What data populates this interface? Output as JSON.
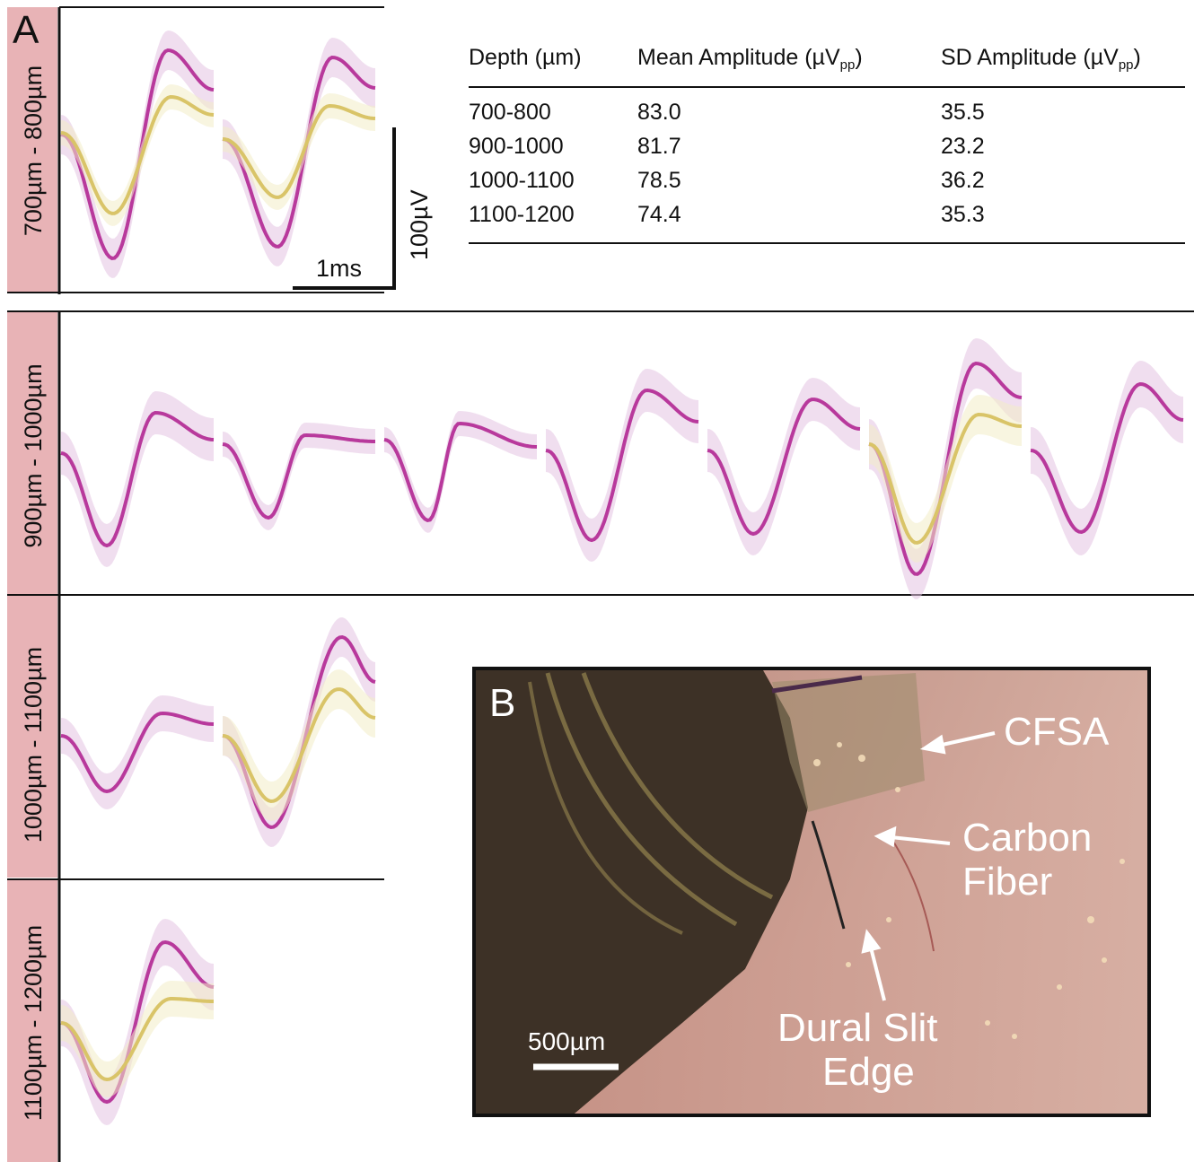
{
  "panel_a_label": "A",
  "panel_b_label": "B",
  "rows": [
    {
      "label": "700µm - 800µm"
    },
    {
      "label": "900µm - 1000µm"
    },
    {
      "label": "1000µm - 1100µm"
    },
    {
      "label": "1100µm - 1200µm"
    }
  ],
  "scale_bar": {
    "time": "1ms",
    "voltage": "100µV"
  },
  "table": {
    "headers": [
      {
        "main": "Depth (µm)",
        "sub": "",
        "tail": ""
      },
      {
        "main": "Mean Amplitude (µV",
        "sub": "pp",
        "tail": ")"
      },
      {
        "main": "SD Amplitude (µV",
        "sub": "pp",
        "tail": ")"
      }
    ],
    "rows": [
      [
        "700-800",
        "83.0",
        "35.5"
      ],
      [
        "900-1000",
        "81.7",
        "23.2"
      ],
      [
        "1000-1100",
        "78.5",
        "36.2"
      ],
      [
        "1100-1200",
        "74.4",
        "35.3"
      ]
    ]
  },
  "photo": {
    "labels": {
      "cfsa": "CFSA",
      "carbon": "Carbon",
      "fiber": "Fiber",
      "dural": "Dural Slit",
      "edge": "Edge"
    },
    "scale": "500µm"
  },
  "colors": {
    "magenta": "#b8399c",
    "yellow": "#d9c468",
    "row_label_bg": "#e8b3b6"
  }
}
